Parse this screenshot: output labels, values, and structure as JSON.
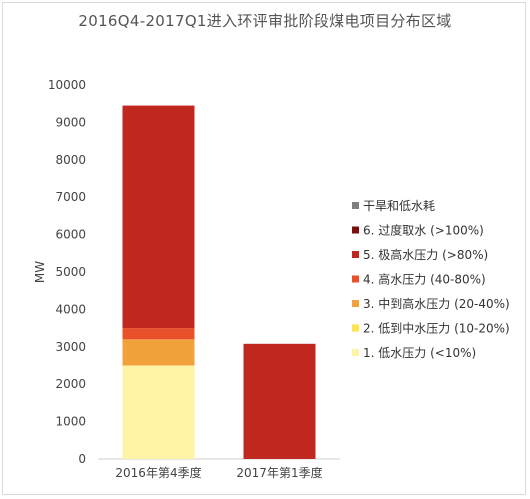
{
  "chart_data": {
    "type": "bar",
    "stacked": true,
    "title": "2016Q4-2017Q1进入环评审批阶段煤电项目分布区域",
    "xlabel": "",
    "ylabel": "MW",
    "ylim": [
      0,
      10000
    ],
    "yticks": [
      0,
      1000,
      2000,
      3000,
      4000,
      5000,
      6000,
      7000,
      8000,
      9000,
      10000
    ],
    "grid": false,
    "legend_position": "right",
    "categories": [
      "2016年第4季度",
      "2017年第1季度"
    ],
    "series": [
      {
        "name": "1. 低水压力 (<10%)",
        "color": "#fff4a6",
        "values": [
          2500,
          0
        ]
      },
      {
        "name": "2. 低到中水压力 (10-20%)",
        "color": "#ffe34d",
        "values": [
          0,
          0
        ]
      },
      {
        "name": "3. 中到高水压力 (20-40%)",
        "color": "#f2a23c",
        "values": [
          700,
          0
        ]
      },
      {
        "name": "4. 高水压力 (40-80%)",
        "color": "#e8502a",
        "values": [
          300,
          0
        ]
      },
      {
        "name": "5. 极高水压力 (>80%)",
        "color": "#c0271f",
        "values": [
          5950,
          3080
        ]
      },
      {
        "name": "6. 过度取水 (>100%)",
        "color": "#7a0f0f",
        "values": [
          0,
          0
        ]
      },
      {
        "name": "干旱和低水耗",
        "color": "#7f7f7f",
        "values": [
          0,
          0
        ]
      }
    ],
    "legend_order": [
      6,
      5,
      4,
      3,
      2,
      1,
      0
    ]
  }
}
